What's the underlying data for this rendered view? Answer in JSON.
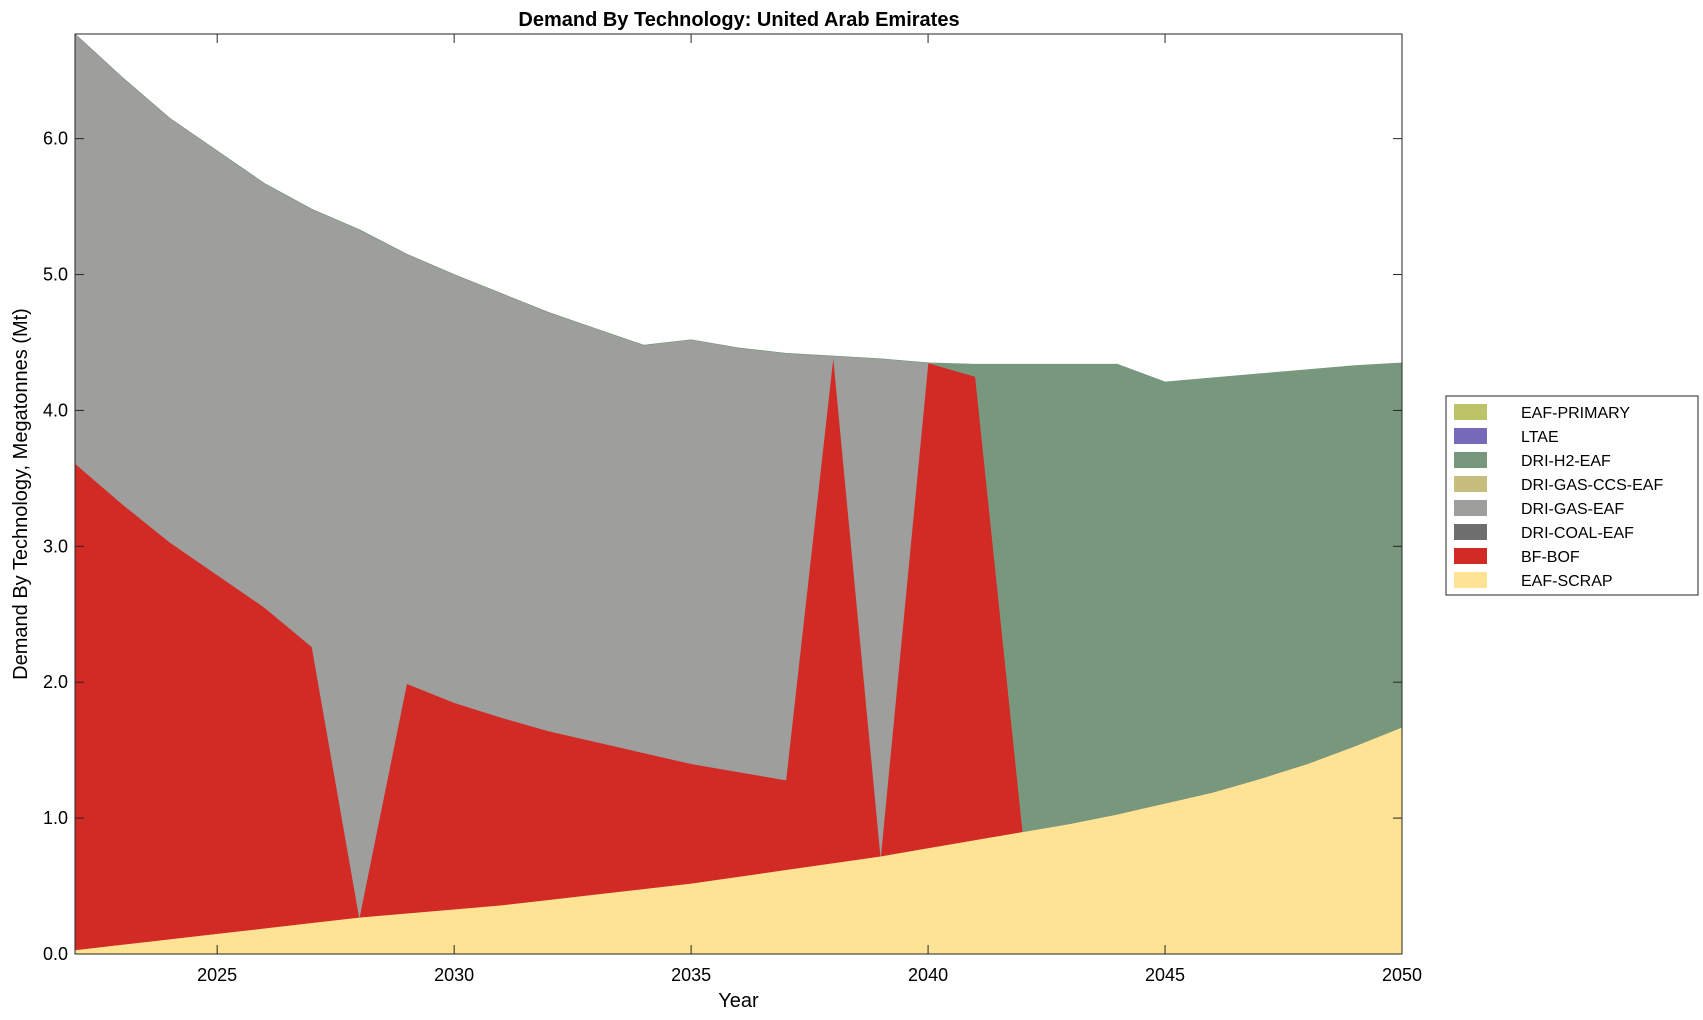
{
  "chart_data": {
    "type": "area",
    "stacked": true,
    "title": "Demand By Technology: United Arab Emirates",
    "xlabel": "Year",
    "ylabel": "Demand By Technology, Megatonnes (Mt)",
    "xlim": [
      2022,
      2050
    ],
    "ylim": [
      0,
      6.77
    ],
    "xticks": [
      2025,
      2030,
      2035,
      2040,
      2045,
      2050
    ],
    "yticks": [
      0,
      1,
      2,
      3,
      4,
      5,
      6
    ],
    "ytick_labels": [
      "0.0",
      "1.0",
      "2.0",
      "3.0",
      "4.0",
      "5.0",
      "6.0"
    ],
    "grid": false,
    "legend_position": "right",
    "x": [
      2022,
      2023,
      2024,
      2025,
      2026,
      2027,
      2028,
      2029,
      2030,
      2031,
      2032,
      2033,
      2034,
      2035,
      2036,
      2037,
      2038,
      2039,
      2040,
      2041,
      2042,
      2043,
      2044,
      2045,
      2046,
      2047,
      2048,
      2049,
      2050
    ],
    "series": [
      {
        "name": "EAF-SCRAP",
        "color": "#FDE393",
        "values": [
          0.03,
          0.07,
          0.11,
          0.15,
          0.19,
          0.23,
          0.27,
          0.3,
          0.33,
          0.36,
          0.4,
          0.44,
          0.48,
          0.52,
          0.57,
          0.62,
          0.67,
          0.72,
          0.78,
          0.84,
          0.9,
          0.96,
          1.03,
          1.11,
          1.19,
          1.29,
          1.4,
          1.53,
          1.67
        ]
      },
      {
        "name": "BF-BOF",
        "color": "#D22A25",
        "values": [
          3.58,
          3.24,
          2.92,
          2.64,
          2.36,
          2.03,
          0,
          1.69,
          1.52,
          1.38,
          1.24,
          1.12,
          1.0,
          0.88,
          0.77,
          0.66,
          3.73,
          0,
          3.57,
          3.41,
          0,
          0,
          0,
          0,
          0,
          0,
          0,
          0,
          0
        ]
      },
      {
        "name": "DRI-COAL-EAF",
        "color": "#6E6E6E",
        "values": [
          0,
          0,
          0,
          0,
          0,
          0,
          0,
          0,
          0,
          0,
          0,
          0,
          0,
          0,
          0,
          0,
          0,
          0,
          0,
          0,
          0,
          0,
          0,
          0,
          0,
          0,
          0,
          0,
          0
        ]
      },
      {
        "name": "DRI-GAS-EAF",
        "color": "#9E9E9C",
        "values": [
          3.16,
          3.14,
          3.12,
          3.12,
          3.12,
          3.22,
          5.06,
          3.16,
          3.15,
          3.12,
          3.08,
          3.04,
          3.0,
          3.12,
          3.12,
          3.14,
          0,
          3.66,
          0,
          0,
          0,
          0,
          0,
          0,
          0,
          0,
          0,
          0,
          0
        ]
      },
      {
        "name": "DRI-GAS-CCS-EAF",
        "color": "#C7BE7D",
        "values": [
          0,
          0,
          0,
          0,
          0,
          0,
          0,
          0,
          0,
          0,
          0,
          0,
          0,
          0,
          0,
          0,
          0,
          0,
          0,
          0,
          0,
          0,
          0,
          0,
          0,
          0,
          0,
          0,
          0
        ]
      },
      {
        "name": "DRI-H2-EAF",
        "color": "#77987D",
        "values": [
          0,
          0,
          0,
          0,
          0,
          0,
          0,
          0,
          0,
          0,
          0,
          0,
          0,
          0,
          0,
          0,
          0,
          0,
          0,
          0.09,
          3.44,
          3.38,
          3.31,
          3.1,
          3.05,
          2.98,
          2.9,
          2.8,
          2.68
        ]
      },
      {
        "name": "LTAE",
        "color": "#7669BA",
        "values": [
          0,
          0,
          0,
          0,
          0,
          0,
          0,
          0,
          0,
          0,
          0,
          0,
          0,
          0,
          0,
          0,
          0,
          0,
          0,
          0,
          0,
          0,
          0,
          0,
          0,
          0,
          0,
          0,
          0
        ]
      },
      {
        "name": "EAF-PRIMARY",
        "color": "#BCC467",
        "values": [
          0,
          0,
          0,
          0,
          0,
          0,
          0,
          0,
          0,
          0,
          0,
          0,
          0,
          0,
          0,
          0,
          0,
          0,
          0,
          0,
          0,
          0,
          0,
          0,
          0,
          0,
          0,
          0,
          0
        ]
      }
    ]
  }
}
